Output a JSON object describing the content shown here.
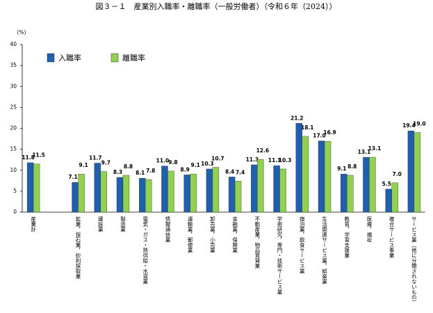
{
  "chart_data": {
    "type": "bar",
    "title": "図３－１　産業別入職率・離職率（一般労働者）（令和６年（2024））",
    "y_unit": "(%)",
    "categories": [
      "産業計",
      null,
      "鉱業，採石業，砂利採取業",
      "建設業",
      "製造業",
      "電気・ガス・熱供給・水道業",
      "情報通信業",
      "運輸業，郵便業",
      "卸売業，小売業",
      "金融業，保険業",
      "不動産業，物品賃貸業",
      "学術研究，専門・技術サービス業",
      "宿泊業，飲食サービス業",
      "生活関連サービス業，娯楽業",
      "教育，学習支援業",
      "医療，福祉",
      "複合サービス事業",
      "サービス業（他に分類されないもの）"
    ],
    "series": [
      {
        "name": "入職率",
        "color": "#1f5fb0",
        "values": [
          11.8,
          null,
          7.1,
          11.7,
          8.3,
          8.1,
          11.0,
          8.9,
          10.3,
          8.4,
          11.3,
          11.1,
          21.2,
          17.0,
          9.1,
          13.1,
          5.5,
          19.4
        ],
        "value_labels": [
          "11.8",
          null,
          "7.1",
          "11.7",
          "8.3",
          "8.1",
          "11.0",
          "8.9",
          "10.3",
          "8.4",
          "11.3",
          "11.1",
          "21.2",
          "17.0",
          "9.1",
          "13.1",
          "5.5",
          "19.4"
        ]
      },
      {
        "name": "離職率",
        "color": "#92d050",
        "values": [
          11.5,
          null,
          9.1,
          9.7,
          8.8,
          7.8,
          9.8,
          9.1,
          10.7,
          7.4,
          12.6,
          10.3,
          18.1,
          16.9,
          8.8,
          13.1,
          7.0,
          19.0
        ],
        "value_labels": [
          "11.5",
          null,
          "9.1",
          "9.7",
          "8.8",
          "7.8",
          "9.8",
          "9.1",
          "10.7",
          "7.4",
          "12.6",
          "10.3",
          "18.1",
          "16.9",
          "8.8",
          "13.1",
          "7.0",
          "19.0"
        ]
      }
    ],
    "ylim": [
      0,
      40
    ],
    "yticks": [
      0,
      5,
      10,
      15,
      20,
      25,
      30,
      35,
      40
    ],
    "grid": false
  }
}
